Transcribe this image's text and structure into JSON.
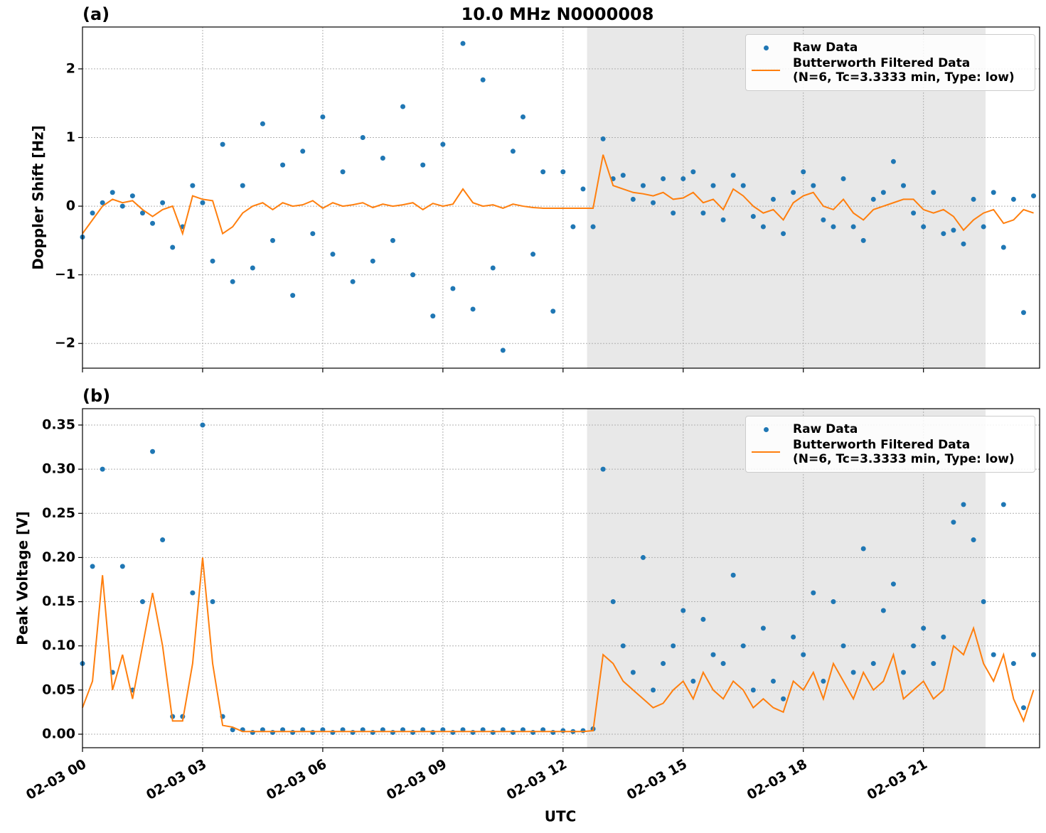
{
  "chart_data": [
    {
      "type": "line",
      "title": "10.0 MHz N0000008",
      "panel_label": "(a)",
      "y_label": "Doppler Shift [Hz]",
      "xlim": [
        0,
        23.9
      ],
      "xticks": [
        0,
        3,
        6,
        9,
        12,
        15,
        18,
        21
      ],
      "ylim": [
        -2.36,
        2.61
      ],
      "yticks": [
        {
          "value": -2,
          "label": "−2"
        },
        {
          "value": -1,
          "label": "−1"
        },
        0,
        1,
        2
      ],
      "grid": true,
      "shaded_span": [
        12.6,
        22.55
      ],
      "legend": "upper right",
      "x": [
        0,
        0.25,
        0.5,
        0.75,
        1,
        1.25,
        1.5,
        1.75,
        2,
        2.25,
        2.5,
        2.75,
        3,
        3.25,
        3.5,
        3.75,
        4,
        4.25,
        4.5,
        4.75,
        5,
        5.25,
        5.5,
        5.75,
        6,
        6.25,
        6.5,
        6.75,
        7,
        7.25,
        7.5,
        7.75,
        8,
        8.25,
        8.5,
        8.75,
        9,
        9.25,
        9.5,
        9.75,
        10,
        10.25,
        10.5,
        10.75,
        11,
        11.25,
        11.5,
        11.75,
        12,
        12.25,
        12.5,
        12.75,
        13,
        13.25,
        13.5,
        13.75,
        14,
        14.25,
        14.5,
        14.75,
        15,
        15.25,
        15.5,
        15.75,
        16,
        16.25,
        16.5,
        16.75,
        17,
        17.25,
        17.5,
        17.75,
        18,
        18.25,
        18.5,
        18.75,
        19,
        19.25,
        19.5,
        19.75,
        20,
        20.25,
        20.5,
        20.75,
        21,
        21.25,
        21.5,
        21.75,
        22,
        22.25,
        22.5,
        22.75,
        23,
        23.25,
        23.5,
        23.75
      ],
      "series": [
        {
          "name": "Raw Data",
          "color": "#1f77b4",
          "draw": "points",
          "values": [
            -0.45,
            -0.1,
            0.05,
            0.2,
            0,
            0.15,
            -0.1,
            -0.25,
            0.05,
            -0.6,
            -0.3,
            0.3,
            0.05,
            -0.8,
            0.9,
            -1.1,
            0.3,
            -0.9,
            1.2,
            -0.5,
            0.6,
            -1.3,
            0.8,
            -0.4,
            1.3,
            -0.7,
            0.5,
            -1.1,
            1,
            -0.8,
            0.7,
            -0.5,
            1.45,
            -1,
            0.6,
            -1.6,
            0.9,
            -1.2,
            2.37,
            -1.5,
            1.84,
            -0.9,
            -2.1,
            0.8,
            1.3,
            -0.7,
            0.5,
            -1.53,
            0.5,
            -0.3,
            0.25,
            -0.3,
            0.98,
            0.4,
            0.45,
            0.1,
            0.3,
            0.05,
            0.4,
            -0.1,
            0.4,
            0.5,
            -0.1,
            0.3,
            -0.2,
            0.45,
            0.3,
            -0.15,
            -0.3,
            0.1,
            -0.4,
            0.2,
            0.5,
            0.3,
            -0.2,
            -0.3,
            0.4,
            -0.3,
            -0.5,
            0.1,
            0.2,
            0.65,
            0.3,
            -0.1,
            -0.3,
            0.2,
            -0.4,
            -0.35,
            -0.55,
            0.1,
            -0.3,
            0.2,
            -0.6,
            0.1,
            -1.55,
            0.15
          ]
        },
        {
          "name": "Butterworth Filtered Data\n(N=6, Tc=3.3333 min, Type: low)",
          "color": "#ff7f0e",
          "draw": "line",
          "values": [
            -0.4,
            -0.2,
            0,
            0.1,
            0.05,
            0.08,
            -0.05,
            -0.15,
            -0.05,
            0,
            -0.4,
            0.15,
            0.1,
            0.08,
            -0.4,
            -0.3,
            -0.1,
            0,
            0.05,
            -0.05,
            0.05,
            0,
            0.02,
            0.08,
            -0.03,
            0.05,
            0,
            0.02,
            0.05,
            -0.02,
            0.03,
            0,
            0.02,
            0.05,
            -0.05,
            0.04,
            0,
            0.03,
            0.25,
            0.05,
            0,
            0.02,
            -0.03,
            0.03,
            0,
            -0.02,
            -0.03,
            -0.03,
            -0.03,
            -0.03,
            -0.03,
            -0.03,
            0.75,
            0.3,
            0.25,
            0.2,
            0.18,
            0.15,
            0.2,
            0.1,
            0.12,
            0.2,
            0.05,
            0.1,
            -0.05,
            0.25,
            0.15,
            0,
            -0.1,
            -0.05,
            -0.2,
            0.05,
            0.15,
            0.2,
            0,
            -0.05,
            0.1,
            -0.1,
            -0.2,
            -0.05,
            0,
            0.05,
            0.1,
            0.1,
            -0.05,
            -0.1,
            -0.05,
            -0.15,
            -0.35,
            -0.2,
            -0.1,
            -0.05,
            -0.25,
            -0.2,
            -0.05,
            -0.1
          ]
        }
      ]
    },
    {
      "type": "line",
      "panel_label": "(b)",
      "y_label": "Peak Voltage [V]",
      "x_label": "UTC",
      "xlim": [
        0,
        23.9
      ],
      "xticks": [
        {
          "value": 0,
          "label": "02-03 00"
        },
        {
          "value": 3,
          "label": "02-03 03"
        },
        {
          "value": 6,
          "label": "02-03 06"
        },
        {
          "value": 9,
          "label": "02-03 09"
        },
        {
          "value": 12,
          "label": "02-03 12"
        },
        {
          "value": 15,
          "label": "02-03 15"
        },
        {
          "value": 18,
          "label": "02-03 18"
        },
        {
          "value": 21,
          "label": "02-03 21"
        }
      ],
      "ylim": [
        -0.0153,
        0.3685
      ],
      "yticks": [
        {
          "value": 0,
          "label": "0.00"
        },
        {
          "value": 0.05,
          "label": "0.05"
        },
        {
          "value": 0.1,
          "label": "0.10"
        },
        {
          "value": 0.15,
          "label": "0.15"
        },
        {
          "value": 0.2,
          "label": "0.20"
        },
        {
          "value": 0.25,
          "label": "0.25"
        },
        {
          "value": 0.3,
          "label": "0.30"
        },
        {
          "value": 0.35,
          "label": "0.35"
        }
      ],
      "grid": true,
      "shaded_span": [
        12.6,
        22.55
      ],
      "legend": "upper right",
      "x": [
        0,
        0.25,
        0.5,
        0.75,
        1,
        1.25,
        1.5,
        1.75,
        2,
        2.25,
        2.5,
        2.75,
        3,
        3.25,
        3.5,
        3.75,
        4,
        4.25,
        4.5,
        4.75,
        5,
        5.25,
        5.5,
        5.75,
        6,
        6.25,
        6.5,
        6.75,
        7,
        7.25,
        7.5,
        7.75,
        8,
        8.25,
        8.5,
        8.75,
        9,
        9.25,
        9.5,
        9.75,
        10,
        10.25,
        10.5,
        10.75,
        11,
        11.25,
        11.5,
        11.75,
        12,
        12.25,
        12.5,
        12.75,
        13,
        13.25,
        13.5,
        13.75,
        14,
        14.25,
        14.5,
        14.75,
        15,
        15.25,
        15.5,
        15.75,
        16,
        16.25,
        16.5,
        16.75,
        17,
        17.25,
        17.5,
        17.75,
        18,
        18.25,
        18.5,
        18.75,
        19,
        19.25,
        19.5,
        19.75,
        20,
        20.25,
        20.5,
        20.75,
        21,
        21.25,
        21.5,
        21.75,
        22,
        22.25,
        22.5,
        22.75,
        23,
        23.25,
        23.5,
        23.75
      ],
      "series": [
        {
          "name": "Raw Data",
          "color": "#1f77b4",
          "draw": "points",
          "values": [
            0.08,
            0.19,
            0.3,
            0.07,
            0.19,
            0.05,
            0.15,
            0.32,
            0.22,
            0.02,
            0.02,
            0.16,
            0.35,
            0.15,
            0.02,
            0.005,
            0.005,
            0.002,
            0.005,
            0.002,
            0.005,
            0.002,
            0.005,
            0.002,
            0.005,
            0.002,
            0.005,
            0.002,
            0.005,
            0.002,
            0.005,
            0.002,
            0.005,
            0.002,
            0.005,
            0.002,
            0.005,
            0.002,
            0.005,
            0.002,
            0.005,
            0.002,
            0.005,
            0.002,
            0.005,
            0.002,
            0.005,
            0.002,
            0.004,
            0.003,
            0.004,
            0.006,
            0.3,
            0.15,
            0.1,
            0.07,
            0.2,
            0.05,
            0.08,
            0.1,
            0.14,
            0.06,
            0.13,
            0.09,
            0.08,
            0.18,
            0.1,
            0.05,
            0.12,
            0.06,
            0.04,
            0.11,
            0.09,
            0.16,
            0.06,
            0.15,
            0.1,
            0.07,
            0.21,
            0.08,
            0.14,
            0.17,
            0.07,
            0.1,
            0.12,
            0.08,
            0.11,
            0.24,
            0.26,
            0.22,
            0.15,
            0.09,
            0.26,
            0.08,
            0.03,
            0.09
          ]
        },
        {
          "name": "Butterworth Filtered Data\n(N=6, Tc=3.3333 min, Type: low)",
          "color": "#ff7f0e",
          "draw": "line",
          "values": [
            0.03,
            0.06,
            0.18,
            0.05,
            0.09,
            0.04,
            0.1,
            0.16,
            0.1,
            0.015,
            0.015,
            0.08,
            0.2,
            0.08,
            0.01,
            0.008,
            0.003,
            0.003,
            0.003,
            0.003,
            0.003,
            0.003,
            0.003,
            0.003,
            0.003,
            0.003,
            0.003,
            0.003,
            0.003,
            0.003,
            0.003,
            0.003,
            0.003,
            0.003,
            0.003,
            0.003,
            0.003,
            0.003,
            0.003,
            0.003,
            0.003,
            0.003,
            0.003,
            0.003,
            0.003,
            0.003,
            0.003,
            0.003,
            0.003,
            0.003,
            0.003,
            0.004,
            0.09,
            0.08,
            0.06,
            0.05,
            0.04,
            0.03,
            0.035,
            0.05,
            0.06,
            0.04,
            0.07,
            0.05,
            0.04,
            0.06,
            0.05,
            0.03,
            0.04,
            0.03,
            0.025,
            0.06,
            0.05,
            0.07,
            0.04,
            0.08,
            0.06,
            0.04,
            0.07,
            0.05,
            0.06,
            0.09,
            0.04,
            0.05,
            0.06,
            0.04,
            0.05,
            0.1,
            0.09,
            0.12,
            0.08,
            0.06,
            0.09,
            0.04,
            0.015,
            0.05
          ]
        }
      ]
    }
  ]
}
